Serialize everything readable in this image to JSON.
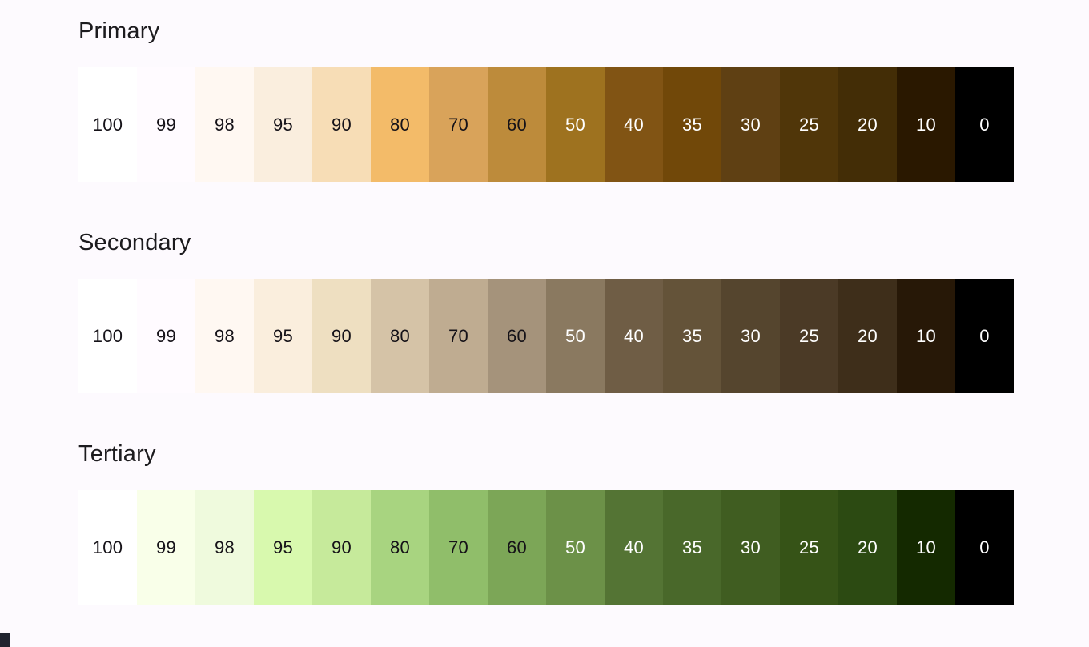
{
  "page": {
    "background_color": "#FDFAFE",
    "corner_fragment_color": "#20242F"
  },
  "label_text_colors": {
    "dark": "#151218",
    "light": "#FFFFFF"
  },
  "palettes": [
    {
      "title": "Primary",
      "swatches": [
        {
          "tone": "100",
          "color": "#FFFFFF",
          "label_style": "dark"
        },
        {
          "tone": "99",
          "color": "#FFFBFF",
          "label_style": "dark"
        },
        {
          "tone": "98",
          "color": "#FFF8F2",
          "label_style": "dark"
        },
        {
          "tone": "95",
          "color": "#FAEEDE",
          "label_style": "dark"
        },
        {
          "tone": "90",
          "color": "#F7DDB6",
          "label_style": "dark"
        },
        {
          "tone": "80",
          "color": "#F3BB69",
          "label_style": "dark"
        },
        {
          "tone": "70",
          "color": "#D9A35A",
          "label_style": "dark"
        },
        {
          "tone": "60",
          "color": "#BD8B3B",
          "label_style": "dark"
        },
        {
          "tone": "50",
          "color": "#9E721F",
          "label_style": "light"
        },
        {
          "tone": "40",
          "color": "#815414",
          "label_style": "light"
        },
        {
          "tone": "35",
          "color": "#714809",
          "label_style": "light"
        },
        {
          "tone": "30",
          "color": "#5F4013",
          "label_style": "light"
        },
        {
          "tone": "25",
          "color": "#503609",
          "label_style": "light"
        },
        {
          "tone": "20",
          "color": "#432D06",
          "label_style": "light"
        },
        {
          "tone": "10",
          "color": "#2A1800",
          "label_style": "light"
        },
        {
          "tone": "0",
          "color": "#000000",
          "label_style": "light"
        }
      ]
    },
    {
      "title": "Secondary",
      "swatches": [
        {
          "tone": "100",
          "color": "#FFFFFF",
          "label_style": "dark"
        },
        {
          "tone": "99",
          "color": "#FFFBFF",
          "label_style": "dark"
        },
        {
          "tone": "98",
          "color": "#FFF8F2",
          "label_style": "dark"
        },
        {
          "tone": "95",
          "color": "#FAEEDD",
          "label_style": "dark"
        },
        {
          "tone": "90",
          "color": "#EEDFC1",
          "label_style": "dark"
        },
        {
          "tone": "80",
          "color": "#D5C3A7",
          "label_style": "dark"
        },
        {
          "tone": "70",
          "color": "#BFAC91",
          "label_style": "dark"
        },
        {
          "tone": "60",
          "color": "#A5937B",
          "label_style": "dark"
        },
        {
          "tone": "50",
          "color": "#8A7960",
          "label_style": "light"
        },
        {
          "tone": "40",
          "color": "#6F5D45",
          "label_style": "light"
        },
        {
          "tone": "35",
          "color": "#645339",
          "label_style": "light"
        },
        {
          "tone": "30",
          "color": "#55452E",
          "label_style": "light"
        },
        {
          "tone": "25",
          "color": "#4B3A26",
          "label_style": "light"
        },
        {
          "tone": "20",
          "color": "#3E2E1A",
          "label_style": "light"
        },
        {
          "tone": "10",
          "color": "#271807",
          "label_style": "light"
        },
        {
          "tone": "0",
          "color": "#000000",
          "label_style": "light"
        }
      ]
    },
    {
      "title": "Tertiary",
      "swatches": [
        {
          "tone": "100",
          "color": "#FFFFFF",
          "label_style": "dark"
        },
        {
          "tone": "99",
          "color": "#F9FFE9",
          "label_style": "dark"
        },
        {
          "tone": "98",
          "color": "#EFFADD",
          "label_style": "dark"
        },
        {
          "tone": "95",
          "color": "#D8F9AE",
          "label_style": "dark"
        },
        {
          "tone": "90",
          "color": "#C6EA9B",
          "label_style": "dark"
        },
        {
          "tone": "80",
          "color": "#A8D480",
          "label_style": "dark"
        },
        {
          "tone": "70",
          "color": "#90BE6A",
          "label_style": "dark"
        },
        {
          "tone": "60",
          "color": "#7CA657",
          "label_style": "dark"
        },
        {
          "tone": "50",
          "color": "#6C9148",
          "label_style": "light"
        },
        {
          "tone": "40",
          "color": "#547434",
          "label_style": "light"
        },
        {
          "tone": "35",
          "color": "#49682A",
          "label_style": "light"
        },
        {
          "tone": "30",
          "color": "#405D21",
          "label_style": "light"
        },
        {
          "tone": "25",
          "color": "#365317",
          "label_style": "light"
        },
        {
          "tone": "20",
          "color": "#2C4A12",
          "label_style": "light"
        },
        {
          "tone": "10",
          "color": "#142900",
          "label_style": "light"
        },
        {
          "tone": "0",
          "color": "#000000",
          "label_style": "light"
        }
      ]
    }
  ]
}
